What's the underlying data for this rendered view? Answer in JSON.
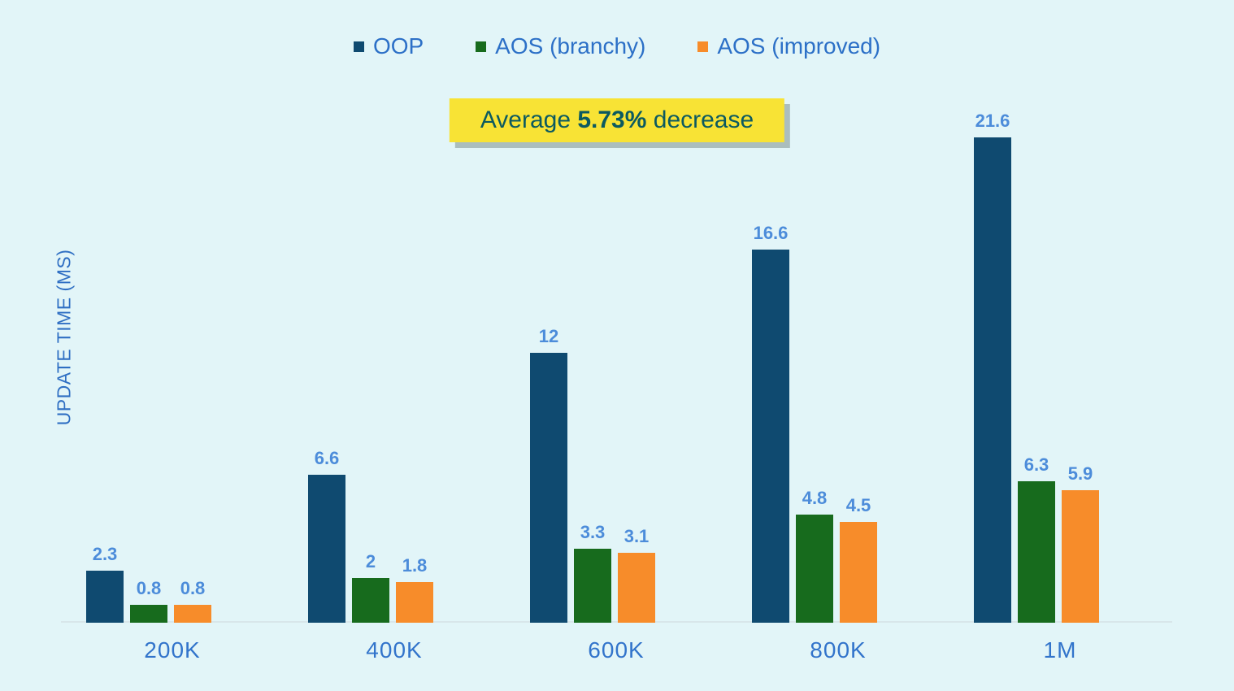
{
  "app": {
    "background_color": "#E2F5F8"
  },
  "legend": {
    "items": [
      {
        "label": "OOP",
        "color": "#0F4A70"
      },
      {
        "label": "AOS (branchy)",
        "color": "#176B1D"
      },
      {
        "label": "AOS (improved)",
        "color": "#F78C2A"
      }
    ]
  },
  "banner": {
    "prefix": "Average ",
    "highlight": "5.73%",
    "suffix": " decrease",
    "background": "#F8E335",
    "text_color": "#0C5A60"
  },
  "chart_data": {
    "type": "bar",
    "title": "",
    "xlabel": "",
    "ylabel": "UPDATE TIME (MS)",
    "categories": [
      "200K",
      "400K",
      "600K",
      "800K",
      "1M"
    ],
    "series": [
      {
        "name": "OOP",
        "color": "#0F4A70",
        "values": [
          2.3,
          6.6,
          12,
          16.6,
          21.6
        ]
      },
      {
        "name": "AOS (branchy)",
        "color": "#176B1D",
        "values": [
          0.8,
          2,
          3.3,
          4.8,
          6.3
        ]
      },
      {
        "name": "AOS (improved)",
        "color": "#F78C2A",
        "values": [
          0.8,
          1.8,
          3.1,
          4.5,
          5.9
        ]
      }
    ],
    "value_labels": [
      [
        "2.3",
        "0.8",
        "0.8"
      ],
      [
        "6.6",
        "2",
        "1.8"
      ],
      [
        "12",
        "3.3",
        "3.1"
      ],
      [
        "16.6",
        "4.8",
        "4.5"
      ],
      [
        "21.6",
        "6.3",
        "5.9"
      ]
    ],
    "annotation": "Average 5.73% decrease",
    "ylim": [
      0,
      24
    ],
    "grid": false,
    "legend_position": "top",
    "value_label_color": "#4C8CDA",
    "category_label_color": "#3274CB"
  }
}
